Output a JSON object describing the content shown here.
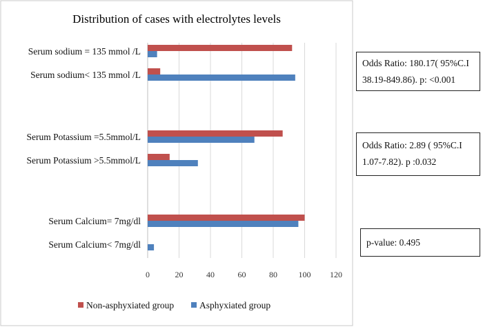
{
  "chart_data": {
    "type": "bar",
    "orientation": "horizontal",
    "title": "Distribution of cases with electrolytes levels",
    "categories": [
      "Serum sodium = 135 mmol /L",
      "Serum sodium< 135 mmol /L",
      "Serum Potassium =5.5mmol/L",
      "Serum Potassium >5.5mmol/L",
      "Serum Calcium= 7mg/dl",
      "Serum Calcium< 7mg/dl"
    ],
    "series": [
      {
        "name": "Non-asphyxiated group",
        "color": "#c0504d",
        "values": [
          92,
          8,
          86,
          14,
          100,
          0
        ]
      },
      {
        "name": "Asphyxiated group",
        "color": "#4f81bd",
        "values": [
          6,
          94,
          68,
          32,
          96,
          4
        ]
      }
    ],
    "xlim": [
      0,
      120
    ],
    "xticks": [
      "0",
      "20",
      "40",
      "60",
      "80",
      "100",
      "120"
    ],
    "grid": true,
    "legend": "bottom"
  },
  "annotations": {
    "sodium": {
      "line1": "Odds Ratio: 180.17( 95%C.I",
      "line2": "38.19-849.86). p: <0.001"
    },
    "potassium": {
      "line1": "Odds Ratio: 2.89 ( 95%C.I",
      "line2": "1.07-7.82). p :0.032"
    },
    "calcium": {
      "line1": "p-value: 0.495"
    }
  }
}
